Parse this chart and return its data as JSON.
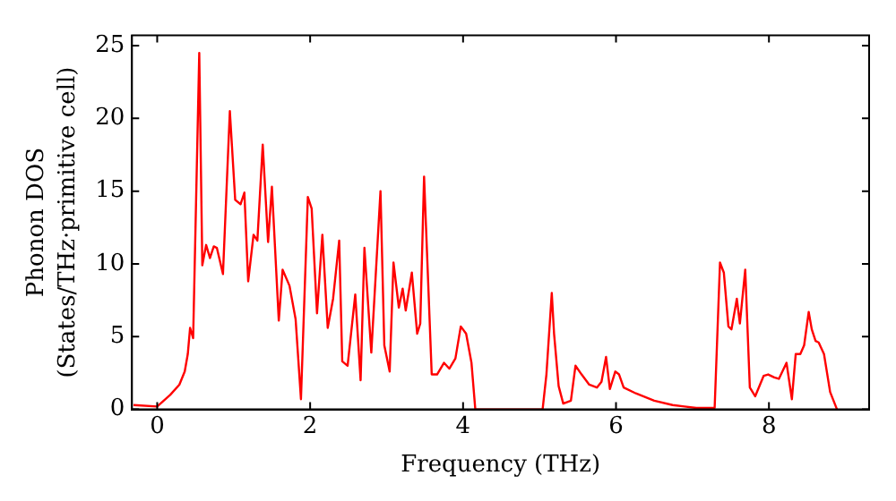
{
  "chart_data": {
    "type": "line",
    "xlabel": "Frequency (THz)",
    "ylabel": "Phonon DOS\n(States/THz·primitive cell)",
    "xlim": [
      -0.33,
      9.31
    ],
    "ylim": [
      0,
      25.7
    ],
    "xticks": [
      0,
      2,
      4,
      6,
      8
    ],
    "yticks": [
      0,
      5,
      10,
      15,
      20,
      25
    ],
    "grid": false,
    "legend": false,
    "marker": "none",
    "line_style": "solid",
    "series": [
      {
        "color": "#ff0000",
        "x": [
          -0.31,
          0,
          0.17,
          0.29,
          0.36,
          0.4,
          0.43,
          0.47,
          0.55,
          0.59,
          0.64,
          0.69,
          0.74,
          0.78,
          0.86,
          0.95,
          1.02,
          1.09,
          1.14,
          1.19,
          1.26,
          1.31,
          1.38,
          1.45,
          1.5,
          1.59,
          1.64,
          1.73,
          1.81,
          1.88,
          1.97,
          2.02,
          2.09,
          2.16,
          2.23,
          2.3,
          2.38,
          2.42,
          2.49,
          2.59,
          2.66,
          2.71,
          2.8,
          2.92,
          2.97,
          3.04,
          3.09,
          3.16,
          3.21,
          3.25,
          3.33,
          3.4,
          3.44,
          3.49,
          3.59,
          3.66,
          3.75,
          3.82,
          3.9,
          3.97,
          4.04,
          4.11,
          4.16,
          5.04,
          5.09,
          5.16,
          5.19,
          5.25,
          5.31,
          5.41,
          5.47,
          5.55,
          5.65,
          5.75,
          5.81,
          5.87,
          5.92,
          5.99,
          6.04,
          6.1,
          6.26,
          6.5,
          6.74,
          7.05,
          7.29,
          7.36,
          7.41,
          7.47,
          7.51,
          7.58,
          7.62,
          7.69,
          7.75,
          7.82,
          7.93,
          7.99,
          8.07,
          8.13,
          8.23,
          8.3,
          8.35,
          8.41,
          8.46,
          8.52,
          8.56,
          8.61,
          8.65,
          8.72,
          8.8,
          8.89
        ],
        "values": [
          0.3,
          0.2,
          1.0,
          1.7,
          2.6,
          3.8,
          5.6,
          4.9,
          24.5,
          9.9,
          11.3,
          10.4,
          11.2,
          11.1,
          9.3,
          20.5,
          14.4,
          14.1,
          14.9,
          8.8,
          12,
          11.6,
          18.2,
          11.5,
          15.3,
          6.1,
          9.6,
          8.5,
          6.2,
          0.7,
          14.6,
          13.8,
          6.6,
          12,
          5.6,
          7.6,
          11.6,
          3.3,
          3.0,
          7.9,
          2.0,
          11.1,
          3.9,
          15.0,
          4.4,
          2.6,
          10.1,
          7.0,
          8.3,
          6.8,
          9.4,
          5.2,
          5.9,
          16.0,
          2.4,
          2.4,
          3.2,
          2.8,
          3.5,
          5.7,
          5.2,
          3.2,
          0,
          0,
          2.4,
          8.0,
          5.2,
          1.6,
          0.4,
          0.6,
          3.0,
          2.4,
          1.7,
          1.5,
          1.9,
          3.6,
          1.4,
          2.6,
          2.4,
          1.5,
          1.1,
          0.6,
          0.3,
          0.1,
          0.1,
          10.1,
          9.4,
          5.7,
          5.5,
          7.6,
          5.9,
          9.6,
          1.5,
          0.9,
          2.3,
          2.4,
          2.2,
          2.1,
          3.2,
          0.7,
          3.8,
          3.8,
          4.4,
          6.7,
          5.5,
          4.7,
          4.6,
          3.8,
          1.2,
          0
        ]
      }
    ]
  }
}
